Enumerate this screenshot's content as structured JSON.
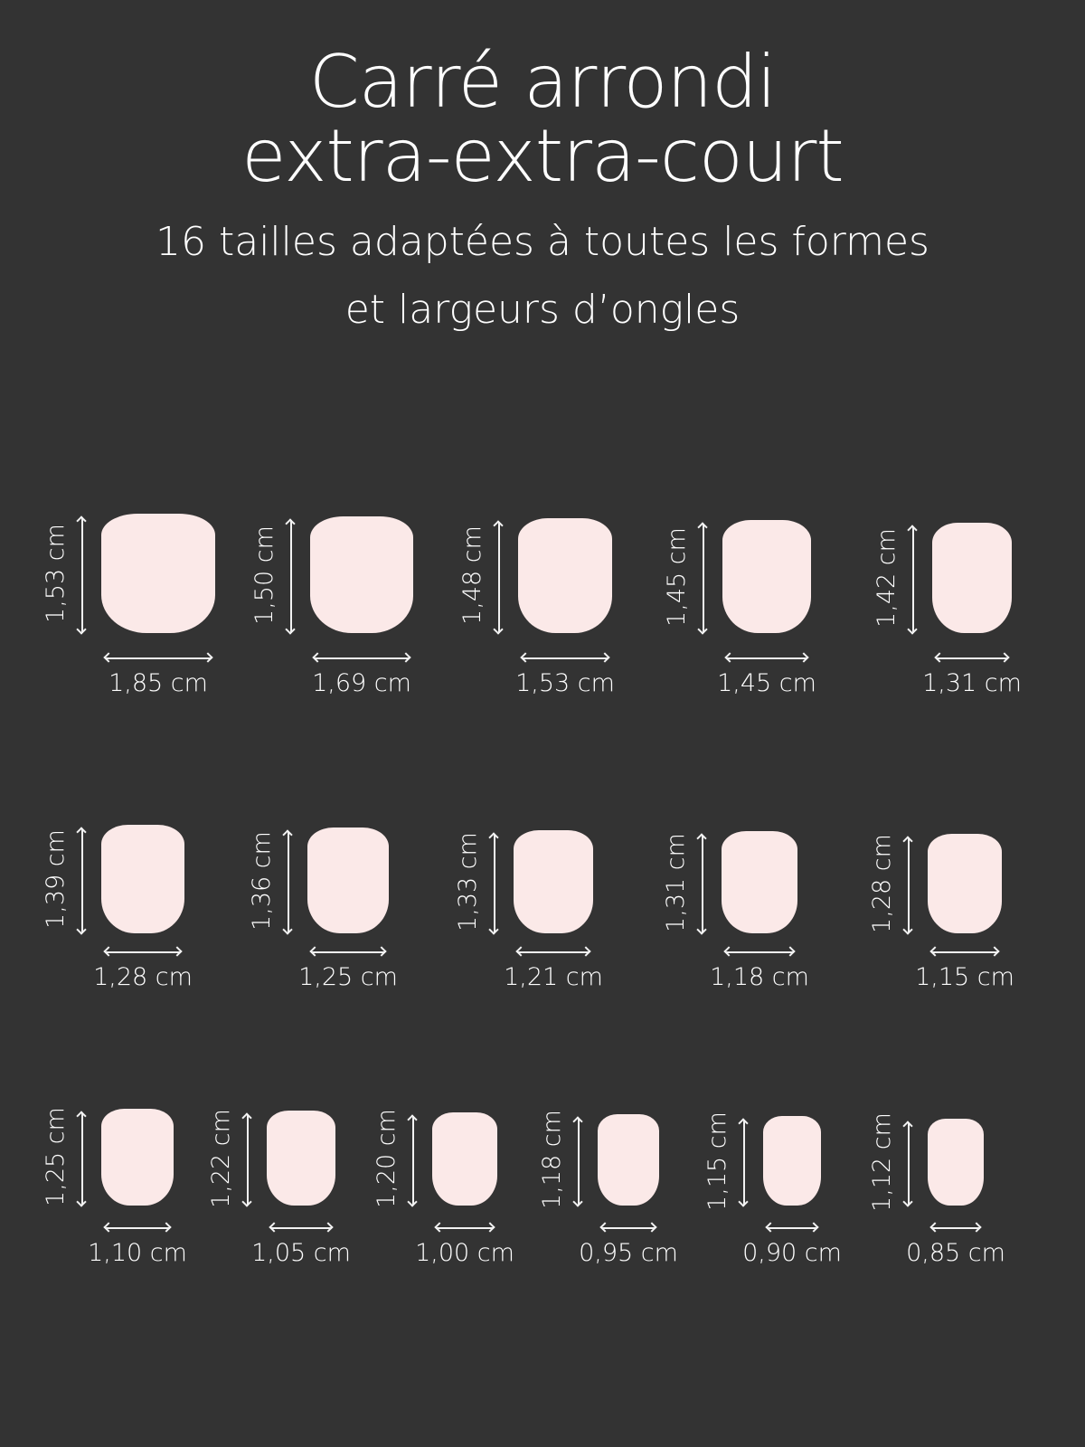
{
  "header": {
    "title_line1": "Carré arrondi",
    "title_line2": "extra-extra-court",
    "subtitle_line1": "16 tailles adaptées à toutes les formes",
    "subtitle_line2": "et largeurs d’ongles"
  },
  "colors": {
    "background": "#333333",
    "nail": "#fbe9e8",
    "text": "#ffffff"
  },
  "rows": [
    [
      {
        "height": "1,53 cm",
        "width": "1,85 cm",
        "h": 1.53,
        "w": 1.85
      },
      {
        "height": "1,50 cm",
        "width": "1,69 cm",
        "h": 1.5,
        "w": 1.69
      },
      {
        "height": "1,48 cm",
        "width": "1,53 cm",
        "h": 1.48,
        "w": 1.53
      },
      {
        "height": "1,45 cm",
        "width": "1,45 cm",
        "h": 1.45,
        "w": 1.45
      },
      {
        "height": "1,42 cm",
        "width": "1,31 cm",
        "h": 1.42,
        "w": 1.31
      }
    ],
    [
      {
        "height": "1,39 cm",
        "width": "1,28 cm",
        "h": 1.39,
        "w": 1.28
      },
      {
        "height": "1,36 cm",
        "width": "1,25 cm",
        "h": 1.36,
        "w": 1.25
      },
      {
        "height": "1,33 cm",
        "width": "1,21 cm",
        "h": 1.33,
        "w": 1.21
      },
      {
        "height": "1,31 cm",
        "width": "1,18 cm",
        "h": 1.31,
        "w": 1.18
      },
      {
        "height": "1,28 cm",
        "width": "1,15 cm",
        "h": 1.28,
        "w": 1.15
      }
    ],
    [
      {
        "height": "1,25 cm",
        "width": "1,10 cm",
        "h": 1.25,
        "w": 1.1
      },
      {
        "height": "1,22 cm",
        "width": "1,05 cm",
        "h": 1.22,
        "w": 1.05
      },
      {
        "height": "1,20 cm",
        "width": "1,00 cm",
        "h": 1.2,
        "w": 1.0
      },
      {
        "height": "1,18 cm",
        "width": "0,95 cm",
        "h": 1.18,
        "w": 0.95
      },
      {
        "height": "1,15 cm",
        "width": "0,90 cm",
        "h": 1.15,
        "w": 0.9
      },
      {
        "height": "1,12 cm",
        "width": "0,85 cm",
        "h": 1.12,
        "w": 0.85
      }
    ]
  ]
}
